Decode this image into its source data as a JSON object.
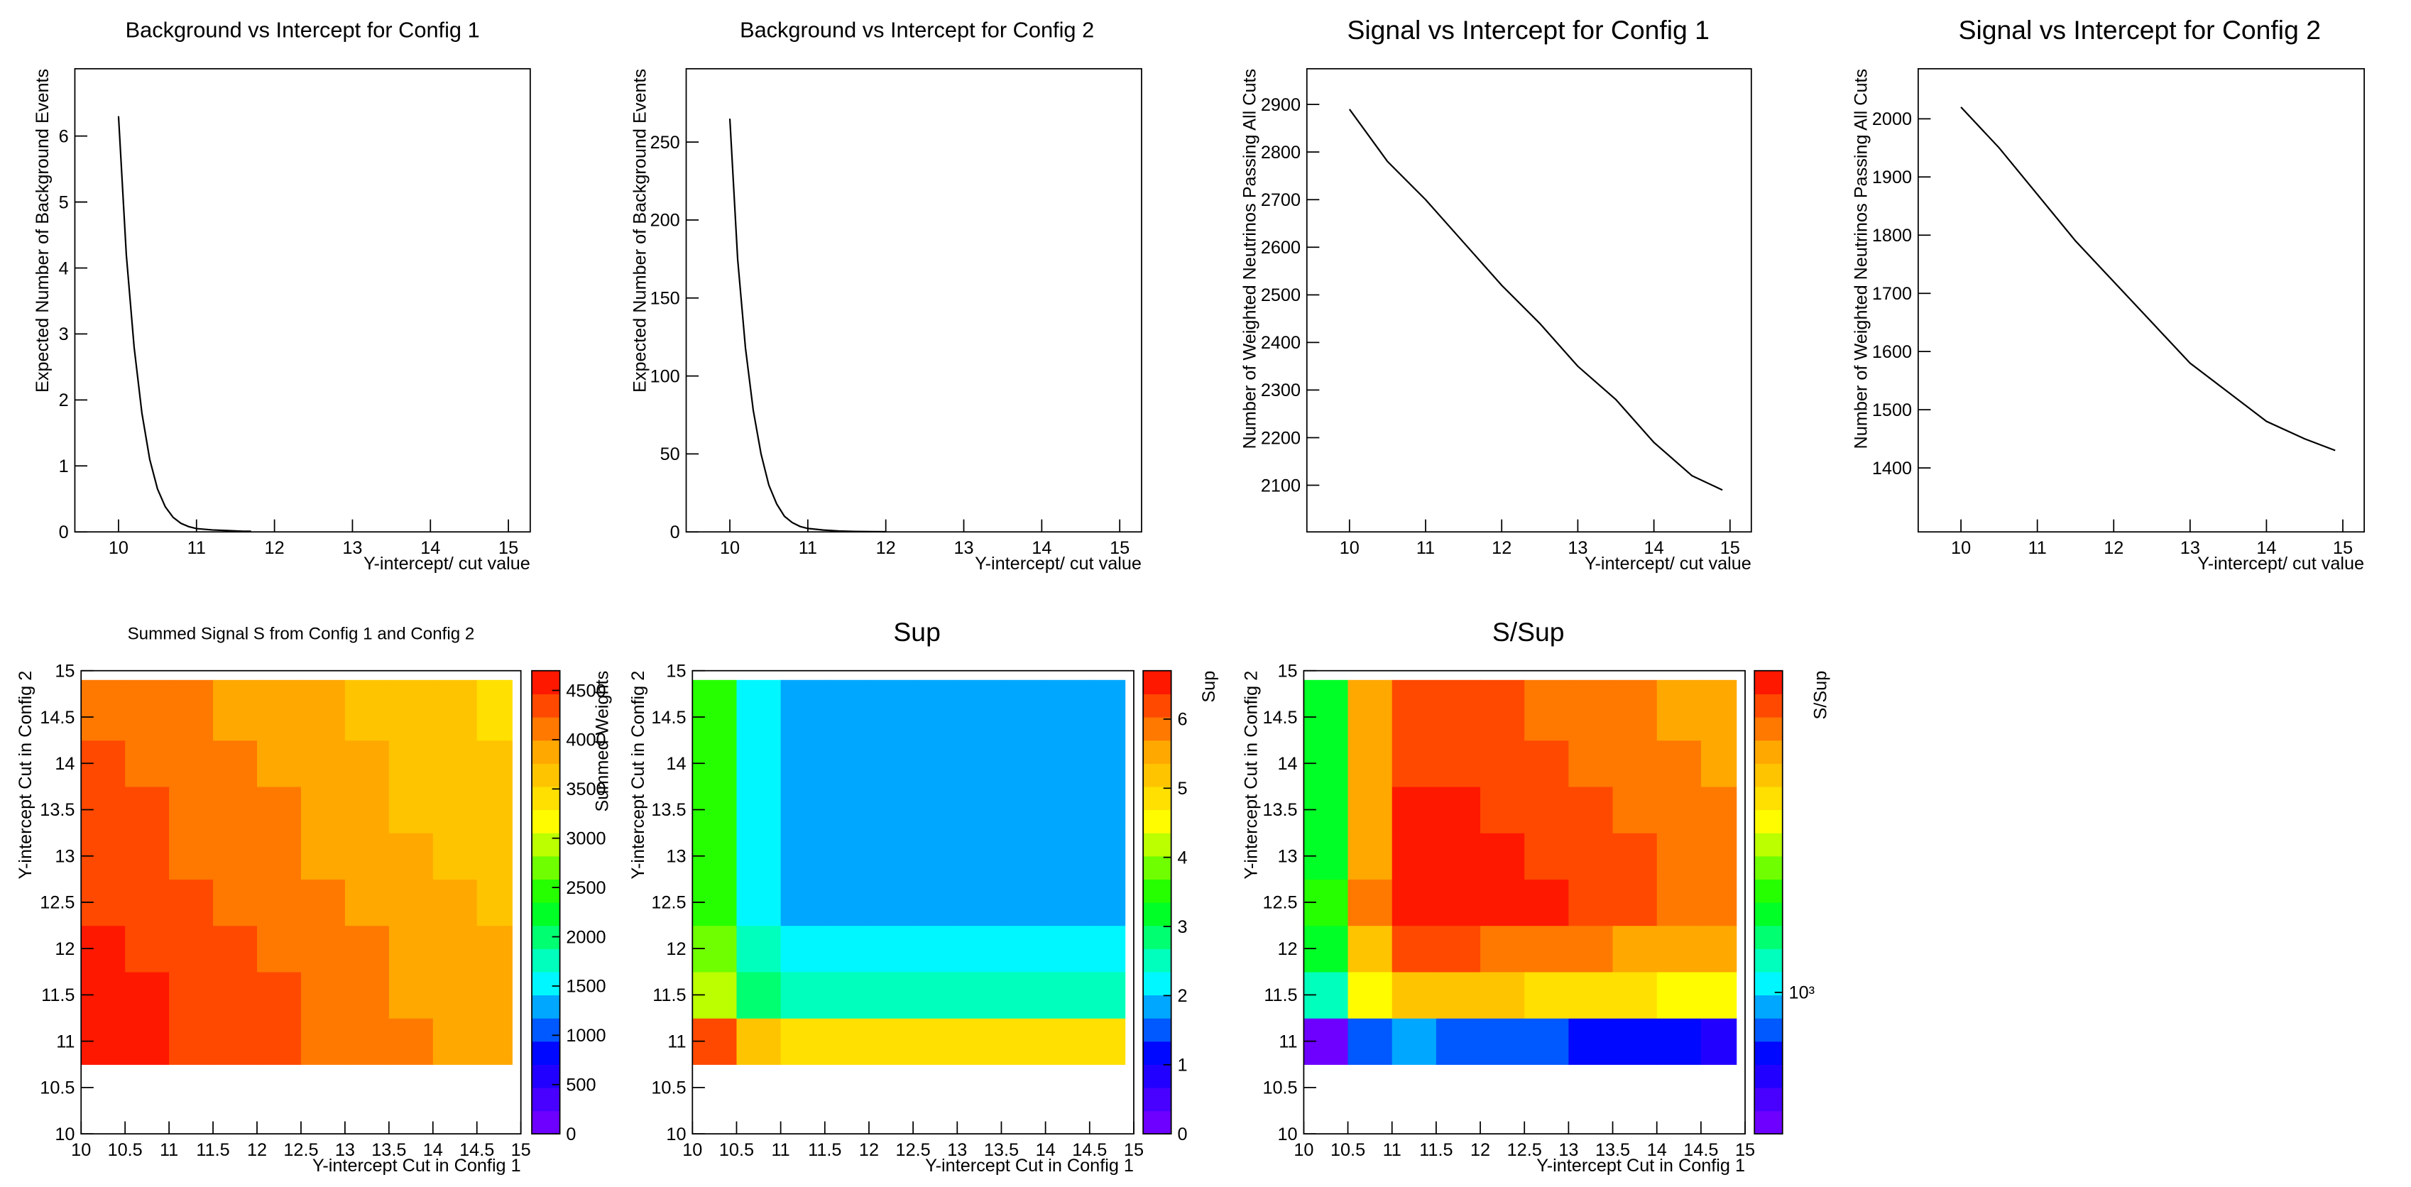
{
  "chart_data": [
    {
      "type": "line",
      "title": "Background vs Intercept for Config 1",
      "xlabel": "Y-intercept/ cut value",
      "ylabel": "Expected Number of Background Events",
      "color": "#000000",
      "x": [
        10,
        10.1,
        10.2,
        10.3,
        10.4,
        10.5,
        10.6,
        10.7,
        10.8,
        10.9,
        11,
        11.2,
        11.4,
        11.6,
        11.7
      ],
      "values": [
        6.3,
        4.2,
        2.8,
        1.8,
        1.1,
        0.65,
        0.38,
        0.22,
        0.13,
        0.08,
        0.05,
        0.03,
        0.02,
        0.01,
        0.01
      ],
      "xlim": [
        9.44,
        15.28
      ],
      "ylim": [
        0,
        7.02
      ],
      "xticks": [
        10,
        11,
        12,
        13,
        14,
        15
      ],
      "yticks": [
        0,
        1,
        2,
        3,
        4,
        5,
        6
      ]
    },
    {
      "type": "line",
      "title": "Background vs Intercept for Config 2",
      "xlabel": "Y-intercept/ cut value",
      "ylabel": "Expected Number of Background Events",
      "color": "#000000",
      "x": [
        10,
        10.1,
        10.2,
        10.3,
        10.4,
        10.5,
        10.6,
        10.7,
        10.8,
        10.9,
        11,
        11.2,
        11.4,
        11.6,
        11.8,
        12
      ],
      "values": [
        265,
        175,
        118,
        78,
        50,
        30,
        18,
        10,
        6,
        3.5,
        2.2,
        1.2,
        0.6,
        0.3,
        0.2,
        0.1
      ],
      "xlim": [
        9.44,
        15.28
      ],
      "ylim": [
        0,
        297
      ],
      "xticks": [
        10,
        11,
        12,
        13,
        14,
        15
      ],
      "yticks": [
        0,
        50,
        100,
        150,
        200,
        250
      ]
    },
    {
      "type": "line",
      "title": "Signal vs Intercept for Config 1",
      "xlabel": "Y-intercept/ cut value",
      "ylabel": "Number of Weighted Neutrinos Passing All Cuts",
      "color": "#000000",
      "x": [
        10,
        10.5,
        11,
        11.5,
        12,
        12.5,
        13,
        13.5,
        14,
        14.5,
        14.9
      ],
      "values": [
        2890,
        2780,
        2700,
        2610,
        2520,
        2440,
        2350,
        2280,
        2190,
        2120,
        2090
      ],
      "xlim": [
        9.44,
        15.28
      ],
      "ylim": [
        2002,
        2975
      ],
      "xticks": [
        10,
        11,
        12,
        13,
        14,
        15
      ],
      "yticks": [
        2100,
        2200,
        2300,
        2400,
        2500,
        2600,
        2700,
        2800,
        2900
      ]
    },
    {
      "type": "line",
      "title": "Signal vs Intercept for Config 2",
      "xlabel": "Y-intercept/ cut value",
      "ylabel": "Number of Weighted Neutrinos Passing All Cuts",
      "color": "#000000",
      "x": [
        10,
        10.5,
        11,
        11.5,
        12,
        12.5,
        13,
        13.5,
        14,
        14.5,
        14.9
      ],
      "values": [
        2020,
        1950,
        1870,
        1790,
        1720,
        1650,
        1580,
        1530,
        1480,
        1450,
        1430
      ],
      "xlim": [
        9.44,
        15.28
      ],
      "ylim": [
        1290,
        2086
      ],
      "xticks": [
        10,
        11,
        12,
        13,
        14,
        15
      ],
      "yticks": [
        1400,
        1500,
        1600,
        1700,
        1800,
        1900,
        2000
      ]
    },
    {
      "type": "heatmap",
      "title": "Summed Signal S from Config 1 and Config 2",
      "xlabel": "Y-intercept Cut in Config 1",
      "ylabel": "Y-intercept Cut in Config 2",
      "zlabel": "Summed Weights",
      "xbins": [
        10,
        10.5,
        11,
        11.5,
        12,
        12.5,
        13,
        13.5,
        14,
        14.5,
        14.9
      ],
      "ybins": [
        10.75,
        11.25,
        11.75,
        12.25,
        12.75,
        13.25,
        13.75,
        14.25,
        14.9
      ],
      "z": [
        [
          4630,
          4550,
          4460,
          4380,
          4300,
          4220,
          4130,
          4050,
          3970,
          3890
        ],
        [
          4570,
          4490,
          4400,
          4320,
          4240,
          4160,
          4070,
          3990,
          3910,
          3830
        ],
        [
          4510,
          4430,
          4340,
          4260,
          4180,
          4100,
          4010,
          3930,
          3850,
          3770
        ],
        [
          4450,
          4370,
          4280,
          4200,
          4120,
          4040,
          3950,
          3870,
          3790,
          3710
        ],
        [
          4390,
          4310,
          4220,
          4140,
          4060,
          3980,
          3890,
          3810,
          3730,
          3650
        ],
        [
          4330,
          4250,
          4160,
          4080,
          4000,
          3920,
          3830,
          3750,
          3670,
          3590
        ],
        [
          4270,
          4190,
          4100,
          4020,
          3940,
          3860,
          3770,
          3690,
          3610,
          3530
        ],
        [
          4200,
          4120,
          4030,
          3950,
          3870,
          3790,
          3700,
          3620,
          3540,
          3460
        ]
      ],
      "xlim": [
        10,
        15
      ],
      "ylim": [
        10,
        15
      ],
      "zlim": [
        0,
        4700
      ],
      "log_z": false,
      "xticks": [
        10,
        10.5,
        11,
        11.5,
        12,
        12.5,
        13,
        13.5,
        14,
        14.5,
        15
      ],
      "yticks": [
        10,
        10.5,
        11,
        11.5,
        12,
        12.5,
        13,
        13.5,
        14,
        14.5,
        15
      ],
      "zticks": [
        0,
        500,
        1000,
        1500,
        2000,
        2500,
        3000,
        3500,
        4000,
        4500
      ]
    },
    {
      "type": "heatmap",
      "title": "Sup",
      "xlabel": "Y-intercept Cut in Config 1",
      "ylabel": "Y-intercept Cut in Config 2",
      "zlabel": "Sup",
      "xbins": [
        10,
        10.5,
        11,
        11.5,
        12,
        12.5,
        13,
        13.5,
        14,
        14.5,
        14.9
      ],
      "ybins": [
        10.75,
        11.25,
        11.75,
        12.25,
        12.75,
        13.25,
        13.75,
        14.25,
        14.9
      ],
      "z": [
        [
          6.3,
          5.1,
          4.75,
          4.7,
          4.7,
          4.7,
          4.7,
          4.7,
          4.7,
          4.7
        ],
        [
          4.1,
          2.9,
          2.55,
          2.5,
          2.5,
          2.5,
          2.5,
          2.5,
          2.5,
          2.5
        ],
        [
          3.7,
          2.5,
          2.15,
          2.1,
          2.1,
          2.1,
          2.1,
          2.1,
          2.1,
          2.1
        ],
        [
          3.5,
          2.3,
          1.95,
          1.9,
          1.9,
          1.9,
          1.9,
          1.9,
          1.9,
          1.9
        ],
        [
          3.5,
          2.3,
          1.95,
          1.9,
          1.9,
          1.9,
          1.9,
          1.9,
          1.9,
          1.9
        ],
        [
          3.5,
          2.3,
          1.95,
          1.9,
          1.9,
          1.9,
          1.9,
          1.9,
          1.9,
          1.9
        ],
        [
          3.5,
          2.3,
          1.95,
          1.9,
          1.9,
          1.9,
          1.9,
          1.9,
          1.9,
          1.9
        ],
        [
          3.5,
          2.3,
          1.95,
          1.9,
          1.9,
          1.9,
          1.9,
          1.9,
          1.9,
          1.9
        ]
      ],
      "xlim": [
        10,
        15
      ],
      "ylim": [
        10,
        15
      ],
      "zlim": [
        0,
        6.7
      ],
      "log_z": false,
      "xticks": [
        10,
        10.5,
        11,
        11.5,
        12,
        12.5,
        13,
        13.5,
        14,
        14.5,
        15
      ],
      "yticks": [
        10,
        10.5,
        11,
        11.5,
        12,
        12.5,
        13,
        13.5,
        14,
        14.5,
        15
      ],
      "zticks": [
        0,
        1,
        2,
        3,
        4,
        5,
        6
      ]
    },
    {
      "type": "heatmap",
      "title": "S/Sup",
      "xlabel": "Y-intercept Cut in Config 1",
      "ylabel": "Y-intercept Cut in Config 2",
      "zlabel": "S/Sup",
      "xbins": [
        10,
        10.5,
        11,
        11.5,
        12,
        12.5,
        13,
        13.5,
        14,
        14.5,
        14.9
      ],
      "ybins": [
        10.75,
        11.25,
        11.75,
        12.25,
        12.75,
        13.25,
        13.75,
        14.25,
        14.9
      ],
      "z": [
        [
          735,
          892,
          939,
          932,
          915,
          898,
          879,
          862,
          845,
          828
        ],
        [
          1115,
          1548,
          1725,
          1728,
          1696,
          1664,
          1628,
          1596,
          1564,
          1532
        ],
        [
          1219,
          1772,
          2019,
          2029,
          1990,
          1952,
          1910,
          1871,
          1833,
          1795
        ],
        [
          1271,
          1900,
          2195,
          2211,
          2168,
          2126,
          2079,
          2037,
          1995,
          1953
        ],
        [
          1254,
          1874,
          2164,
          2179,
          2137,
          2095,
          2047,
          2005,
          1963,
          1921
        ],
        [
          1237,
          1848,
          2133,
          2147,
          2105,
          2063,
          2016,
          1974,
          1932,
          1889
        ],
        [
          1220,
          1822,
          2103,
          2116,
          2074,
          2032,
          1984,
          1942,
          1900,
          1858
        ],
        [
          1200,
          1791,
          2067,
          2079,
          2037,
          1995,
          1947,
          1905,
          1863,
          1821
        ]
      ],
      "xlim": [
        10,
        15
      ],
      "ylim": [
        10,
        15
      ],
      "zlim": [
        700,
        2250
      ],
      "log_z": true,
      "xticks": [
        10,
        10.5,
        11,
        11.5,
        12,
        12.5,
        13,
        13.5,
        14,
        14.5,
        15
      ],
      "yticks": [
        10,
        10.5,
        11,
        11.5,
        12,
        12.5,
        13,
        13.5,
        14,
        14.5,
        15
      ],
      "zticks": [
        {
          "value": 1000,
          "label": "10³"
        }
      ]
    }
  ]
}
